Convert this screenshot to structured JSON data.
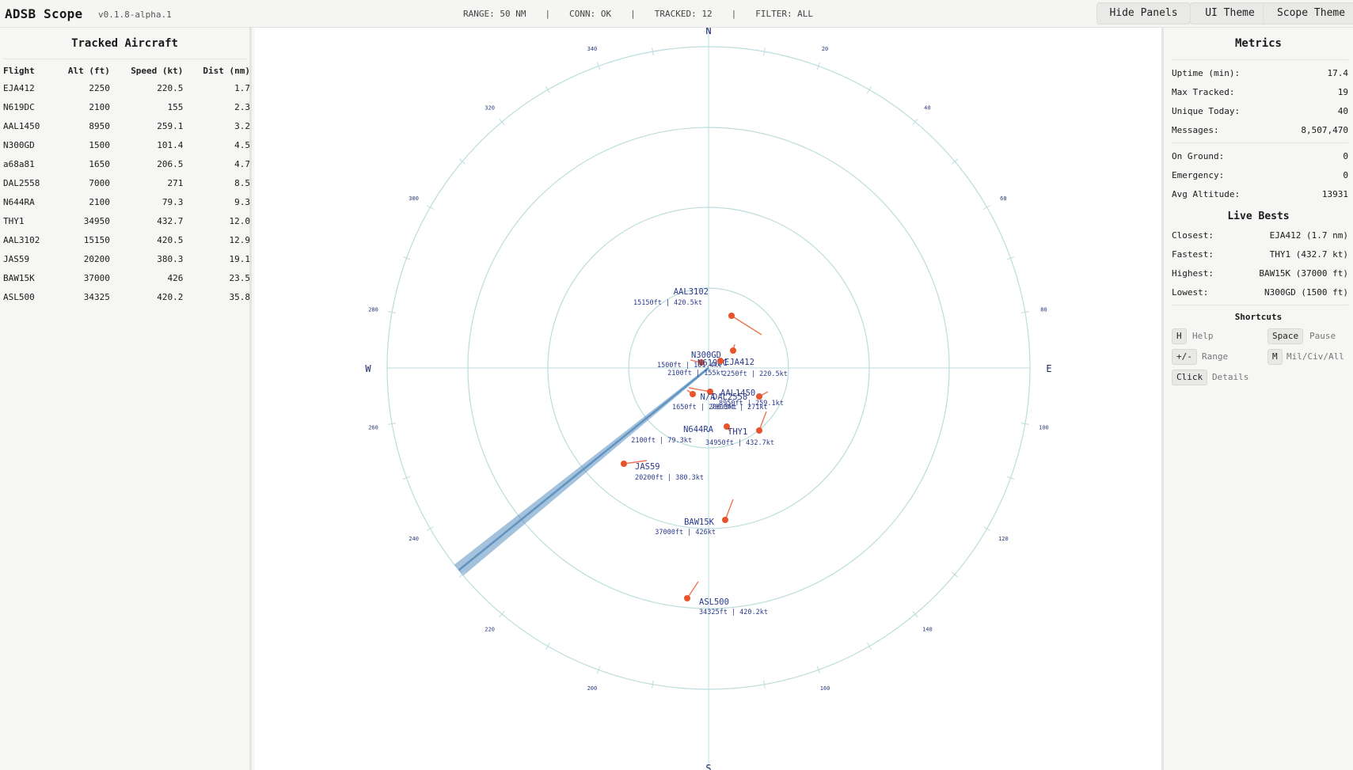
{
  "app": {
    "title": "ADSB Scope",
    "version": "v0.1.8-alpha.1"
  },
  "status": {
    "range": "RANGE: 50 NM",
    "sep": "|",
    "conn": "CONN: OK",
    "tracked": "TRACKED: 12",
    "filter": "FILTER: ALL"
  },
  "toolbar": {
    "hide_panels": "Hide Panels",
    "ui_theme": "UI Theme",
    "scope_theme": "Scope Theme"
  },
  "tracked_panel": {
    "title": "Tracked Aircraft",
    "columns": [
      "Flight",
      "Alt (ft)",
      "Speed (kt)",
      "Dist (nm)"
    ],
    "rows": [
      [
        "EJA412",
        "2250",
        "220.5",
        "1.7"
      ],
      [
        "N619DC",
        "2100",
        "155",
        "2.3"
      ],
      [
        "AAL1450",
        "8950",
        "259.1",
        "3.2"
      ],
      [
        "N300GD",
        "1500",
        "101.4",
        "4.5"
      ],
      [
        "a68a81",
        "1650",
        "206.5",
        "4.7"
      ],
      [
        "DAL2558",
        "7000",
        "271",
        "8.5"
      ],
      [
        "N644RA",
        "2100",
        "79.3",
        "9.3"
      ],
      [
        "THY1",
        "34950",
        "432.7",
        "12.0"
      ],
      [
        "AAL3102",
        "15150",
        "420.5",
        "12.9"
      ],
      [
        "JAS59",
        "20200",
        "380.3",
        "19.1"
      ],
      [
        "BAW15K",
        "37000",
        "426",
        "23.5"
      ],
      [
        "ASL500",
        "34325",
        "420.2",
        "35.8"
      ]
    ]
  },
  "scope": {
    "cardinals": {
      "n": "N",
      "e": "E",
      "s": "S",
      "w": "W"
    },
    "bearing_labels": [
      "20",
      "40",
      "60",
      "80",
      "100",
      "120",
      "140",
      "160",
      "200",
      "220",
      "240",
      "260",
      "280",
      "300",
      "320",
      "340"
    ],
    "targets": [
      {
        "name": "AAL3102",
        "info": "15150ft | 420.5kt"
      },
      {
        "name": "N300GD",
        "info": "1500ft | 101.4kt"
      },
      {
        "name": "N619DC",
        "info": "2100ft | 155kt"
      },
      {
        "name": "EJA412",
        "info": "2250ft | 220.5kt"
      },
      {
        "name": "AAL1450",
        "info": "8950ft | 259.1kt"
      },
      {
        "name": "DAL2558",
        "info": "7000ft | 271kt"
      },
      {
        "name": "N/A",
        "info": "1650ft | 206.5kt"
      },
      {
        "name": "N644RA",
        "info": "2100ft | 79.3kt"
      },
      {
        "name": "THY1",
        "info": "34950ft | 432.7kt"
      },
      {
        "name": "JAS59",
        "info": "20200ft | 380.3kt"
      },
      {
        "name": "BAW15K",
        "info": "37000ft | 426kt"
      },
      {
        "name": "ASL500",
        "info": "34325ft | 420.2kt"
      }
    ],
    "colors": {
      "ring": "#bcdcdc",
      "target": "#e8532a",
      "label": "#2a3a8a",
      "sweep": "#5a8fbf"
    }
  },
  "metrics": {
    "title": "Metrics",
    "group1": [
      {
        "label": "Uptime (min):",
        "value": "17.4"
      },
      {
        "label": "Max Tracked:",
        "value": "19"
      },
      {
        "label": "Unique Today:",
        "value": "40"
      },
      {
        "label": "Messages:",
        "value": "8,507,470"
      }
    ],
    "group2": [
      {
        "label": "On Ground:",
        "value": "0"
      },
      {
        "label": "Emergency:",
        "value": "0"
      },
      {
        "label": "Avg Altitude:",
        "value": "13931"
      }
    ],
    "live_bests_title": "Live Bests",
    "bests": [
      {
        "label": "Closest:",
        "value": "EJA412 (1.7 nm)"
      },
      {
        "label": "Fastest:",
        "value": "THY1 (432.7 kt)"
      },
      {
        "label": "Highest:",
        "value": "BAW15K (37000 ft)"
      },
      {
        "label": "Lowest:",
        "value": "N300GD (1500 ft)"
      }
    ],
    "shortcuts_title": "Shortcuts",
    "shortcuts": [
      {
        "key": "H",
        "desc": "Help"
      },
      {
        "key": "Space",
        "desc": "Pause"
      },
      {
        "key": "+/-",
        "desc": "Range"
      },
      {
        "key": "M",
        "desc": "Mil/Civ/All"
      },
      {
        "key": "Click",
        "desc": "Details"
      }
    ]
  }
}
